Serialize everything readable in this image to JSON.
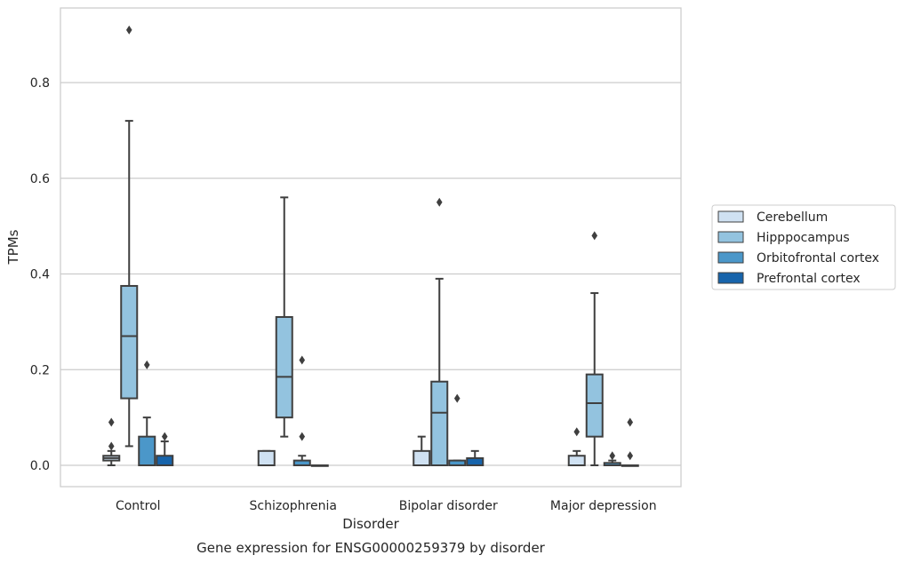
{
  "chart_data": {
    "type": "box",
    "xlabel": "Disorder",
    "ylabel": "TPMs",
    "caption": "Gene expression for ENSG00000259379 by disorder",
    "ylim": [
      -0.045,
      0.95
    ],
    "yticks": [
      "0.0",
      "0.2",
      "0.4",
      "0.6",
      "0.8"
    ],
    "ytick_values": [
      0.0,
      0.2,
      0.4,
      0.6,
      0.8
    ],
    "grid": true,
    "legend_position": "right",
    "categories": [
      "Control",
      "Schizophrenia",
      "Bipolar disorder",
      "Major depression"
    ],
    "series": [
      {
        "name": "Cerebellum",
        "color": "#cfe1f2",
        "boxes": [
          {
            "q1": 0.01,
            "median": 0.015,
            "q3": 0.02,
            "whisker_low": 0.0,
            "whisker_high": 0.03,
            "outliers": [
              0.04,
              0.09
            ]
          },
          {
            "q1": 0.0,
            "median": 0.0,
            "q3": 0.03,
            "whisker_low": 0.0,
            "whisker_high": 0.03,
            "outliers": []
          },
          {
            "q1": 0.0,
            "median": 0.0,
            "q3": 0.03,
            "whisker_low": 0.0,
            "whisker_high": 0.06,
            "outliers": []
          },
          {
            "q1": 0.0,
            "median": 0.0,
            "q3": 0.02,
            "whisker_low": 0.0,
            "whisker_high": 0.03,
            "outliers": [
              0.07
            ]
          }
        ]
      },
      {
        "name": "Hipppocampus",
        "color": "#93c3df",
        "boxes": [
          {
            "q1": 0.14,
            "median": 0.27,
            "q3": 0.375,
            "whisker_low": 0.04,
            "whisker_high": 0.72,
            "outliers": [
              0.91
            ]
          },
          {
            "q1": 0.1,
            "median": 0.185,
            "q3": 0.31,
            "whisker_low": 0.06,
            "whisker_high": 0.56,
            "outliers": []
          },
          {
            "q1": 0.0,
            "median": 0.11,
            "q3": 0.175,
            "whisker_low": 0.0,
            "whisker_high": 0.39,
            "outliers": [
              0.55
            ]
          },
          {
            "q1": 0.06,
            "median": 0.13,
            "q3": 0.19,
            "whisker_low": 0.0,
            "whisker_high": 0.36,
            "outliers": [
              0.48
            ]
          }
        ]
      },
      {
        "name": "Orbitofrontal cortex",
        "color": "#4b97c9",
        "boxes": [
          {
            "q1": 0.0,
            "median": 0.0,
            "q3": 0.06,
            "whisker_low": 0.0,
            "whisker_high": 0.1,
            "outliers": [
              0.21
            ]
          },
          {
            "q1": 0.0,
            "median": 0.0,
            "q3": 0.01,
            "whisker_low": 0.0,
            "whisker_high": 0.02,
            "outliers": [
              0.06,
              0.22
            ]
          },
          {
            "q1": 0.0,
            "median": 0.0,
            "q3": 0.01,
            "whisker_low": 0.0,
            "whisker_high": 0.01,
            "outliers": [
              0.14
            ]
          },
          {
            "q1": 0.0,
            "median": 0.0,
            "q3": 0.005,
            "whisker_low": 0.0,
            "whisker_high": 0.01,
            "outliers": [
              0.02
            ]
          }
        ]
      },
      {
        "name": "Prefrontal cortex",
        "color": "#1764ab",
        "boxes": [
          {
            "q1": 0.0,
            "median": 0.0,
            "q3": 0.02,
            "whisker_low": 0.0,
            "whisker_high": 0.05,
            "outliers": [
              0.06
            ]
          },
          {
            "q1": 0.0,
            "median": 0.0,
            "q3": 0.0,
            "whisker_low": 0.0,
            "whisker_high": 0.0,
            "outliers": []
          },
          {
            "q1": 0.0,
            "median": 0.0,
            "q3": 0.015,
            "whisker_low": 0.0,
            "whisker_high": 0.03,
            "outliers": []
          },
          {
            "q1": 0.0,
            "median": 0.0,
            "q3": 0.0,
            "whisker_low": 0.0,
            "whisker_high": 0.0,
            "outliers": [
              0.02,
              0.09
            ]
          }
        ]
      }
    ]
  }
}
